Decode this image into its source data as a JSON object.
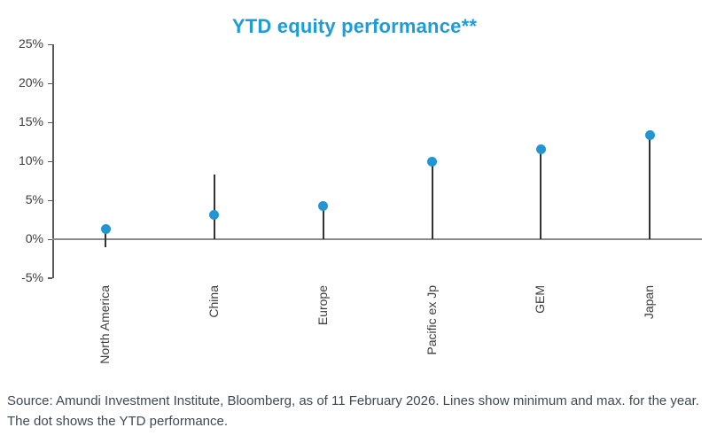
{
  "colors": {
    "title": "#1e9cd9",
    "dot": "#2196d4",
    "stem": "#333333",
    "axis": "#595959",
    "zero_line": "#8a8a8a",
    "tick_text": "#3c3c3c",
    "footer_text": "#3e4956"
  },
  "chart_data": {
    "type": "scatter",
    "variant": "range-lollipop",
    "title": "YTD equity performance**",
    "categories": [
      "North America",
      "China",
      "Europe",
      "Pacific ex Jp",
      "GEM",
      "Japan"
    ],
    "series": [
      {
        "name": "YTD performance (dot)",
        "values": [
          1.3,
          3.1,
          4.3,
          10.0,
          11.5,
          13.4
        ]
      },
      {
        "name": "Year minimum (line bottom)",
        "values": [
          -1.0,
          0.0,
          0.0,
          0.0,
          0.0,
          0.0
        ]
      },
      {
        "name": "Year maximum (line top)",
        "values": [
          1.5,
          8.3,
          4.3,
          10.0,
          11.5,
          13.4
        ]
      }
    ],
    "ylabel": "",
    "xlabel": "",
    "ylim": [
      -5,
      25
    ],
    "ytick_values": [
      25,
      20,
      15,
      10,
      5,
      0,
      -5
    ],
    "ytick_suffix": "%",
    "grid": false,
    "legend": "none"
  },
  "footer": {
    "line1": "Source: Amundi Investment Institute, Bloomberg, as of 11 February 2026. Lines show minimum and max. for the year.",
    "line2": "The dot shows the YTD performance."
  }
}
